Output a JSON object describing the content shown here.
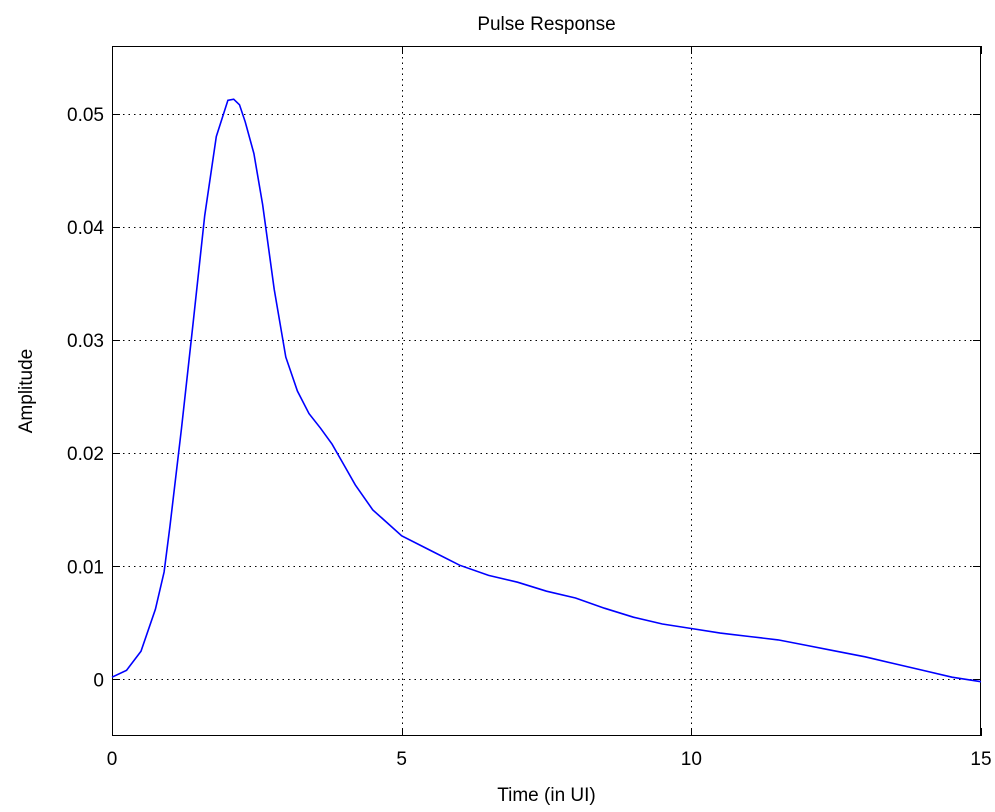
{
  "chart_data": {
    "type": "line",
    "title": "Pulse Response",
    "xlabel": "Time (in UI)",
    "ylabel": "Amplitude",
    "xlim": [
      0,
      15
    ],
    "ylim": [
      -0.005,
      0.056
    ],
    "xticks": [
      0,
      5,
      10,
      15
    ],
    "xtick_labels": [
      "0",
      "5",
      "10",
      "15"
    ],
    "yticks": [
      0,
      0.01,
      0.02,
      0.03,
      0.04,
      0.05
    ],
    "ytick_labels": [
      "0",
      "0.01",
      "0.02",
      "0.03",
      "0.04",
      "0.05"
    ],
    "grid": true,
    "colors": {
      "line": "#0000ff",
      "axes": "#000000",
      "grid": "#000000"
    },
    "series": [
      {
        "x": [
          0,
          0.25,
          0.5,
          0.75,
          0.9,
          1.0,
          1.2,
          1.4,
          1.6,
          1.8,
          2.0,
          2.1,
          2.2,
          2.3,
          2.45,
          2.6,
          2.8,
          3.0,
          3.2,
          3.4,
          3.6,
          3.8,
          4.0,
          4.2,
          4.5,
          5.0,
          5.5,
          6.0,
          6.5,
          7.0,
          7.5,
          8.0,
          8.5,
          9.0,
          9.5,
          10.0,
          10.5,
          11.0,
          11.5,
          12.0,
          12.5,
          13.0,
          13.5,
          14.0,
          14.5,
          15.0
        ],
        "y": [
          0.0002,
          0.0008,
          0.0025,
          0.0062,
          0.0095,
          0.0135,
          0.0222,
          0.0315,
          0.041,
          0.048,
          0.0512,
          0.0513,
          0.0508,
          0.0493,
          0.0465,
          0.042,
          0.0345,
          0.0285,
          0.0255,
          0.0235,
          0.0222,
          0.0208,
          0.019,
          0.0172,
          0.015,
          0.0127,
          0.0114,
          0.0101,
          0.0092,
          0.0086,
          0.0078,
          0.0072,
          0.0063,
          0.0055,
          0.0049,
          0.0045,
          0.0041,
          0.0038,
          0.0035,
          0.003,
          0.0025,
          0.002,
          0.0014,
          0.0008,
          0.0002,
          -0.0002
        ]
      }
    ]
  }
}
